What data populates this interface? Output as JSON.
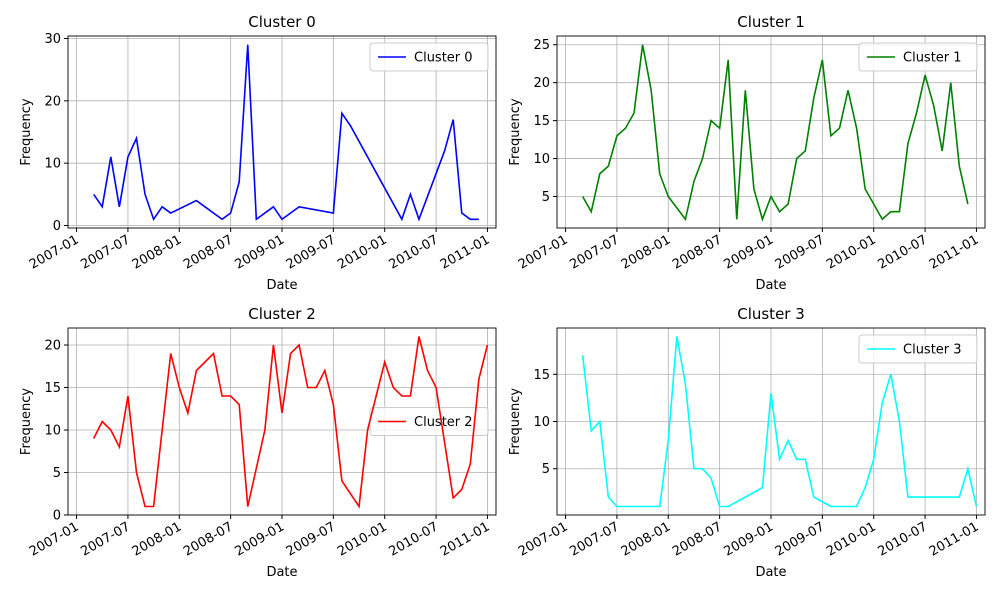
{
  "chart_data": [
    {
      "type": "line",
      "title": "Cluster 0",
      "xlabel": "Date",
      "ylabel": "Frequency",
      "x": [
        "2007-03",
        "2007-04",
        "2007-05",
        "2007-06",
        "2007-07",
        "2007-08",
        "2007-09",
        "2007-10",
        "2007-11",
        "2007-12",
        "2008-03",
        "2008-06",
        "2008-07",
        "2008-08",
        "2008-09",
        "2008-10",
        "2008-12",
        "2009-01",
        "2009-03",
        "2009-07",
        "2009-08",
        "2009-09",
        "2010-03",
        "2010-04",
        "2010-05",
        "2010-08",
        "2010-09",
        "2010-10",
        "2010-11",
        "2010-12"
      ],
      "series": [
        {
          "name": "Cluster 0",
          "color": "#0000ff",
          "values": [
            5,
            3,
            11,
            3,
            11,
            14,
            5,
            1,
            3,
            2,
            4,
            1,
            2,
            7,
            29,
            1,
            3,
            1,
            3,
            2,
            18,
            16,
            1,
            5,
            1,
            12,
            17,
            2,
            1,
            1
          ]
        }
      ],
      "xlim": [
        "2006-12",
        "2011-02"
      ],
      "xticks": [
        "2007-01",
        "2007-07",
        "2008-01",
        "2008-07",
        "2009-01",
        "2009-07",
        "2010-01",
        "2010-07",
        "2011-01"
      ],
      "ylim": [
        -0.4,
        30.4
      ],
      "yticks": [
        0,
        10,
        20,
        30
      ],
      "grid": true,
      "legend": "upper right"
    },
    {
      "type": "line",
      "title": "Cluster 1",
      "xlabel": "Date",
      "ylabel": "Frequency",
      "x": [
        "2007-03",
        "2007-04",
        "2007-05",
        "2007-06",
        "2007-07",
        "2007-08",
        "2007-09",
        "2007-10",
        "2007-11",
        "2007-12",
        "2008-01",
        "2008-03",
        "2008-04",
        "2008-05",
        "2008-06",
        "2008-07",
        "2008-08",
        "2008-09",
        "2008-10",
        "2008-11",
        "2008-12",
        "2009-01",
        "2009-02",
        "2009-03",
        "2009-04",
        "2009-05",
        "2009-06",
        "2009-07",
        "2009-08",
        "2009-09",
        "2009-10",
        "2009-11",
        "2009-12",
        "2010-02",
        "2010-03",
        "2010-04",
        "2010-05",
        "2010-06",
        "2010-07",
        "2010-08",
        "2010-09",
        "2010-10",
        "2010-11",
        "2010-12"
      ],
      "series": [
        {
          "name": "Cluster 1",
          "color": "#008000",
          "values": [
            5,
            3,
            8,
            9,
            13,
            14,
            16,
            25,
            19,
            8,
            5,
            2,
            7,
            10,
            15,
            14,
            23,
            2,
            19,
            6,
            2,
            5,
            3,
            4,
            10,
            11,
            18,
            23,
            13,
            14,
            19,
            14,
            6,
            2,
            3,
            3,
            12,
            16,
            21,
            17,
            11,
            20,
            9,
            4
          ]
        }
      ],
      "xlim": [
        "2006-12",
        "2011-02"
      ],
      "xticks": [
        "2007-01",
        "2007-07",
        "2008-01",
        "2008-07",
        "2009-01",
        "2009-07",
        "2010-01",
        "2010-07",
        "2011-01"
      ],
      "ylim": [
        0.85,
        26.15
      ],
      "yticks": [
        5,
        10,
        15,
        20,
        25
      ],
      "grid": true,
      "legend": "upper right"
    },
    {
      "type": "line",
      "title": "Cluster 2",
      "xlabel": "Date",
      "ylabel": "Frequency",
      "x": [
        "2007-03",
        "2007-04",
        "2007-05",
        "2007-06",
        "2007-07",
        "2007-08",
        "2007-09",
        "2007-10",
        "2007-12",
        "2008-01",
        "2008-02",
        "2008-03",
        "2008-05",
        "2008-06",
        "2008-07",
        "2008-08",
        "2008-09",
        "2008-11",
        "2008-12",
        "2009-01",
        "2009-02",
        "2009-03",
        "2009-04",
        "2009-05",
        "2009-06",
        "2009-07",
        "2009-08",
        "2009-10",
        "2009-11",
        "2010-01",
        "2010-02",
        "2010-03",
        "2010-04",
        "2010-05",
        "2010-06",
        "2010-07",
        "2010-09",
        "2010-10",
        "2010-11",
        "2010-12",
        "2011-01"
      ],
      "series": [
        {
          "name": "Cluster 2",
          "color": "#ff0000",
          "values": [
            9,
            11,
            10,
            8,
            14,
            5,
            1,
            1,
            19,
            15,
            12,
            17,
            19,
            14,
            14,
            13,
            1,
            10,
            20,
            12,
            19,
            20,
            15,
            15,
            17,
            13,
            4,
            1,
            10,
            18,
            15,
            14,
            14,
            21,
            17,
            15,
            2,
            3,
            6,
            16,
            20
          ]
        }
      ],
      "xlim": [
        "2006-12",
        "2011-02"
      ],
      "xticks": [
        "2007-01",
        "2007-07",
        "2008-01",
        "2008-07",
        "2009-01",
        "2009-07",
        "2010-01",
        "2010-07",
        "2011-01"
      ],
      "ylim": [
        0,
        22
      ],
      "yticks": [
        0,
        5,
        10,
        15,
        20
      ],
      "grid": true,
      "legend": "center right"
    },
    {
      "type": "line",
      "title": "Cluster 3",
      "xlabel": "Date",
      "ylabel": "Frequency",
      "x": [
        "2007-03",
        "2007-04",
        "2007-05",
        "2007-06",
        "2007-07",
        "2007-08",
        "2007-09",
        "2007-10",
        "2007-11",
        "2007-12",
        "2008-01",
        "2008-02",
        "2008-03",
        "2008-04",
        "2008-05",
        "2008-06",
        "2008-07",
        "2008-08",
        "2008-12",
        "2009-01",
        "2009-02",
        "2009-03",
        "2009-04",
        "2009-05",
        "2009-06",
        "2009-08",
        "2009-11",
        "2009-12",
        "2010-01",
        "2010-02",
        "2010-03",
        "2010-04",
        "2010-05",
        "2010-11",
        "2010-12",
        "2011-01"
      ],
      "series": [
        {
          "name": "Cluster 3",
          "color": "#00ffff",
          "values": [
            17,
            9,
            10,
            2,
            1,
            1,
            1,
            1,
            1,
            1,
            8,
            19,
            14,
            5,
            5,
            4,
            1,
            1,
            3,
            13,
            6,
            8,
            6,
            6,
            2,
            1,
            1,
            3,
            6,
            12,
            15,
            10,
            2,
            2,
            5,
            1
          ]
        }
      ],
      "xlim": [
        "2006-12",
        "2011-02"
      ],
      "xticks": [
        "2007-01",
        "2007-07",
        "2008-01",
        "2008-07",
        "2009-01",
        "2009-07",
        "2010-01",
        "2010-07",
        "2011-01"
      ],
      "ylim": [
        0.1,
        19.9
      ],
      "yticks": [
        5,
        10,
        15
      ],
      "grid": true,
      "legend": "upper right"
    }
  ]
}
